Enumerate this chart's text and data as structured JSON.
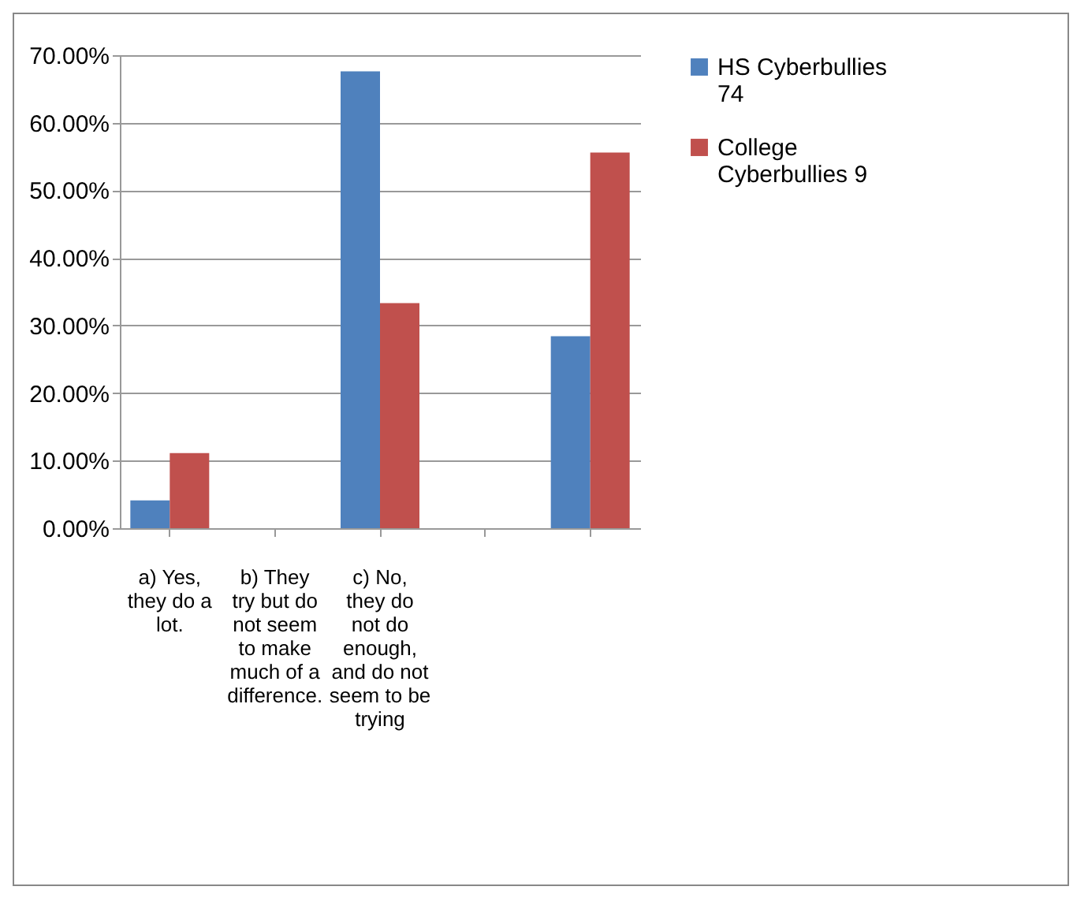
{
  "chart_data": {
    "type": "bar",
    "categories": [
      "a) Yes, they do a lot.",
      "b) They try but do not seem to make much of a difference.",
      "c) No, they do not do enough, and do not seem to be trying",
      null,
      null
    ],
    "series": [
      {
        "name": "HS Cyberbullies 74",
        "color": "#4f81bd",
        "values": [
          4.1,
          0,
          67.6,
          0,
          28.4
        ]
      },
      {
        "name": "College Cyberbullies 9",
        "color": "#c0504d",
        "values": [
          11.1,
          0,
          33.3,
          0,
          55.6
        ]
      }
    ],
    "ylim": [
      0,
      70
    ],
    "yticks": [
      {
        "value": 0,
        "label": "0.00%"
      },
      {
        "value": 10,
        "label": "10.00%"
      },
      {
        "value": 20,
        "label": "20.00%"
      },
      {
        "value": 30,
        "label": "30.00%"
      },
      {
        "value": 40,
        "label": "40.00%"
      },
      {
        "value": 50,
        "label": "50.00%"
      },
      {
        "value": 60,
        "label": "60.00%"
      },
      {
        "value": 70,
        "label": "70.00%"
      }
    ],
    "grid": "y",
    "legend": "right"
  }
}
